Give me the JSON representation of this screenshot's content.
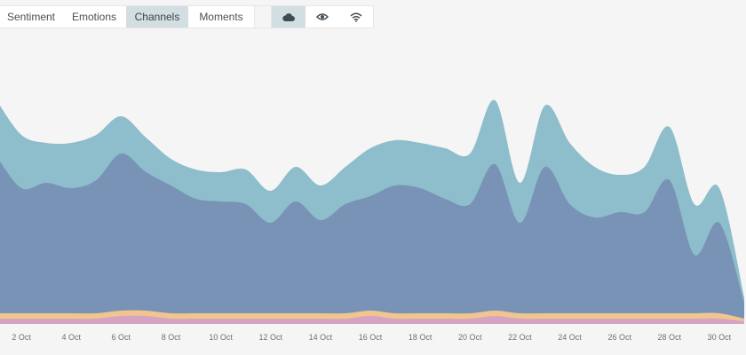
{
  "toolbar": {
    "tabs": [
      {
        "label": "Sentiment",
        "active": false
      },
      {
        "label": "Emotions",
        "active": false
      },
      {
        "label": "Channels",
        "active": true
      },
      {
        "label": "Moments",
        "active": false
      }
    ],
    "icons": [
      {
        "name": "cloud-icon",
        "active": true
      },
      {
        "name": "eye-icon",
        "active": false
      },
      {
        "name": "wifi-icon",
        "active": false
      }
    ]
  },
  "colors": {
    "background": "#f5f5f5",
    "series_top": "#8ebdcc",
    "series_main": "#7893b6",
    "series_pink": "#d4a4c2",
    "series_orange": "#f2c58f"
  },
  "chart_data": {
    "type": "area",
    "x": [
      "1 Oct",
      "2 Oct",
      "3 Oct",
      "4 Oct",
      "5 Oct",
      "6 Oct",
      "7 Oct",
      "8 Oct",
      "9 Oct",
      "10 Oct",
      "11 Oct",
      "12 Oct",
      "13 Oct",
      "14 Oct",
      "15 Oct",
      "16 Oct",
      "17 Oct",
      "18 Oct",
      "19 Oct",
      "20 Oct",
      "21 Oct",
      "22 Oct",
      "23 Oct",
      "24 Oct",
      "25 Oct",
      "26 Oct",
      "27 Oct",
      "28 Oct",
      "29 Oct",
      "30 Oct",
      "31 Oct"
    ],
    "tick_labels": [
      "2 Oct",
      "4 Oct",
      "6 Oct",
      "8 Oct",
      "10 Oct",
      "12 Oct",
      "14 Oct",
      "16 Oct",
      "18 Oct",
      "20 Oct",
      "22 Oct",
      "24 Oct",
      "26 Oct",
      "28 Oct",
      "30 Oct"
    ],
    "series": [
      {
        "values": [
          2,
          2,
          2,
          2,
          2,
          3,
          3,
          2,
          2,
          2,
          2,
          2,
          2,
          2,
          2,
          3,
          2,
          2,
          2,
          2,
          3,
          2,
          2,
          2,
          2,
          2,
          2,
          2,
          2,
          2,
          1
        ]
      },
      {
        "values": [
          2,
          2,
          2,
          2,
          2,
          2,
          2,
          2,
          2,
          2,
          2,
          2,
          2,
          2,
          2,
          2,
          2,
          2,
          2,
          2,
          2,
          2,
          2,
          2,
          2,
          2,
          2,
          2,
          2,
          2,
          1
        ]
      },
      {
        "values": [
          59,
          47,
          49,
          47,
          50,
          59,
          52,
          48,
          43,
          42,
          41,
          34,
          42,
          35,
          41,
          43,
          48,
          47,
          43,
          41,
          55,
          34,
          55,
          41,
          36,
          38,
          38,
          50,
          22,
          34,
          6
        ]
      },
      {
        "values": [
          21,
          20,
          15,
          17,
          17,
          14,
          13,
          10,
          11,
          11,
          13,
          12,
          13,
          13,
          14,
          18,
          17,
          17,
          19,
          19,
          24,
          15,
          23,
          23,
          19,
          14,
          17,
          20,
          19,
          13,
          2
        ]
      }
    ],
    "ylim": [
      0,
      100
    ],
    "grid": false,
    "legend": "none"
  }
}
